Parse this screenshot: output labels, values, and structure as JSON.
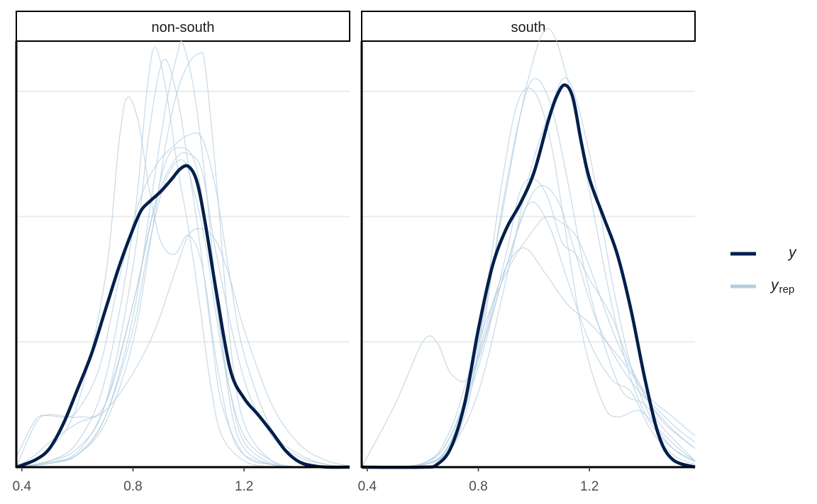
{
  "chart_data": {
    "type": "line",
    "subtype": "ppc-density-overlay-faceted",
    "facets": [
      "non-south",
      "south"
    ],
    "xlim": [
      0.38,
      1.58
    ],
    "ylim": [
      0,
      3.4
    ],
    "x_ticks": [
      0.4,
      0.8,
      1.2
    ],
    "x_tick_labels": [
      "0.4",
      "0.8",
      "1.2"
    ],
    "y_gridlines": [
      1.0,
      2.0,
      3.0
    ],
    "legend": {
      "placement": "right",
      "entries": [
        {
          "key": "y",
          "label": "y",
          "subscript": "",
          "color": "#011f4b"
        },
        {
          "key": "yrep",
          "label": "y",
          "subscript": "rep",
          "color": "#b3cde0"
        }
      ]
    },
    "colors": {
      "y": "#011f4b",
      "yrep": "#b3cde0",
      "grid": "#ebebeb"
    },
    "panels": [
      {
        "facet": "non-south",
        "y_x": [
          0.38,
          0.45,
          0.5,
          0.55,
          0.6,
          0.65,
          0.7,
          0.75,
          0.8,
          0.83,
          0.86,
          0.9,
          0.94,
          0.97,
          1.0,
          1.03,
          1.06,
          1.1,
          1.15,
          1.2,
          1.25,
          1.3,
          1.35,
          1.4,
          1.45,
          1.5,
          1.58
        ],
        "y_y": [
          0.0,
          0.06,
          0.15,
          0.35,
          0.62,
          0.9,
          1.25,
          1.6,
          1.9,
          2.05,
          2.12,
          2.2,
          2.3,
          2.38,
          2.4,
          2.28,
          1.95,
          1.4,
          0.78,
          0.55,
          0.42,
          0.28,
          0.13,
          0.04,
          0.01,
          0.0,
          0.0
        ],
        "yrep": [
          {
            "x": [
              0.38,
              0.5,
              0.6,
              0.7,
              0.75,
              0.78,
              0.82,
              0.86,
              0.9,
              0.95,
              1.0,
              1.05,
              1.1,
              1.15,
              1.2,
              1.3,
              1.4,
              1.5,
              1.58
            ],
            "y": [
              0.0,
              0.15,
              0.5,
              1.5,
              2.6,
              2.95,
              2.75,
              2.2,
              1.8,
              1.7,
              1.85,
              1.6,
              0.85,
              0.3,
              0.1,
              0.02,
              0.0,
              0.0,
              0.0
            ]
          },
          {
            "x": [
              0.38,
              0.5,
              0.6,
              0.7,
              0.8,
              0.85,
              0.88,
              0.92,
              0.96,
              1.0,
              1.04,
              1.08,
              1.12,
              1.2,
              1.3,
              1.4,
              1.5,
              1.58
            ],
            "y": [
              0.0,
              0.05,
              0.2,
              0.7,
              1.9,
              3.0,
              3.35,
              3.0,
              2.4,
              1.9,
              1.3,
              0.65,
              0.25,
              0.05,
              0.0,
              0.0,
              0.0,
              0.0
            ]
          },
          {
            "x": [
              0.38,
              0.5,
              0.6,
              0.7,
              0.8,
              0.86,
              0.91,
              0.96,
              1.0,
              1.04,
              1.08,
              1.12,
              1.2,
              1.3,
              1.4,
              1.5,
              1.58
            ],
            "y": [
              0.0,
              0.05,
              0.15,
              0.5,
              1.6,
              2.7,
              3.25,
              2.95,
              2.4,
              1.8,
              1.1,
              0.5,
              0.1,
              0.02,
              0.0,
              0.0,
              0.0
            ]
          },
          {
            "x": [
              0.38,
              0.5,
              0.6,
              0.7,
              0.8,
              0.87,
              0.92,
              0.96,
              0.98,
              1.02,
              1.06,
              1.1,
              1.15,
              1.2,
              1.3,
              1.4,
              1.5,
              1.58
            ],
            "y": [
              0.0,
              0.03,
              0.1,
              0.4,
              1.2,
              2.2,
              2.9,
              3.3,
              3.38,
              3.0,
              2.3,
              1.4,
              0.5,
              0.15,
              0.02,
              0.0,
              0.0,
              0.0
            ]
          },
          {
            "x": [
              0.38,
              0.5,
              0.6,
              0.7,
              0.8,
              0.87,
              0.92,
              0.96,
              1.0,
              1.04,
              1.06,
              1.1,
              1.15,
              1.2,
              1.3,
              1.4,
              1.5,
              1.58
            ],
            "y": [
              0.0,
              0.03,
              0.1,
              0.35,
              1.0,
              1.9,
              2.6,
              3.0,
              3.22,
              3.3,
              3.2,
              2.3,
              1.0,
              0.35,
              0.05,
              0.0,
              0.0,
              0.0
            ]
          },
          {
            "x": [
              0.38,
              0.45,
              0.5,
              0.55,
              0.6,
              0.68,
              0.75,
              0.82,
              0.88,
              0.94,
              1.0,
              1.05,
              1.1,
              1.15,
              1.2,
              1.3,
              1.4,
              1.5,
              1.58
            ],
            "y": [
              0.08,
              0.38,
              0.41,
              0.4,
              0.45,
              0.8,
              1.5,
              2.1,
              2.4,
              2.55,
              2.65,
              2.62,
              2.2,
              1.5,
              0.9,
              0.3,
              0.1,
              0.02,
              0.0
            ]
          },
          {
            "x": [
              0.38,
              0.5,
              0.6,
              0.7,
              0.8,
              0.87,
              0.92,
              0.97,
              1.02,
              1.06,
              1.1,
              1.15,
              1.2,
              1.3,
              1.4,
              1.5,
              1.58
            ],
            "y": [
              0.0,
              0.04,
              0.12,
              0.5,
              1.3,
              2.0,
              2.45,
              2.55,
              2.45,
              2.0,
              1.3,
              0.6,
              0.2,
              0.03,
              0.0,
              0.0,
              0.0
            ]
          },
          {
            "x": [
              0.38,
              0.5,
              0.6,
              0.7,
              0.8,
              0.86,
              0.92,
              0.98,
              1.02,
              1.06,
              1.1,
              1.14,
              1.2,
              1.3,
              1.4,
              1.5,
              1.58
            ],
            "y": [
              0.0,
              0.03,
              0.1,
              0.4,
              1.1,
              1.8,
              2.3,
              2.45,
              2.2,
              1.8,
              1.2,
              0.7,
              0.25,
              0.05,
              0.0,
              0.0,
              0.0
            ]
          },
          {
            "x": [
              0.38,
              0.45,
              0.5,
              0.6,
              0.7,
              0.8,
              0.88,
              0.95,
              1.0,
              1.05,
              1.1,
              1.15,
              1.2,
              1.3,
              1.4,
              1.5,
              1.58
            ],
            "y": [
              0.0,
              0.1,
              0.2,
              0.35,
              0.45,
              0.75,
              1.1,
              1.55,
              1.85,
              1.9,
              1.8,
              1.5,
              1.1,
              0.5,
              0.18,
              0.05,
              0.01
            ]
          },
          {
            "x": [
              0.38,
              0.45,
              0.5,
              0.6,
              0.7,
              0.8,
              0.88,
              0.95,
              1.0,
              1.05,
              1.1,
              1.2,
              1.3,
              1.4,
              1.5,
              1.58
            ],
            "y": [
              0.0,
              0.35,
              0.42,
              0.4,
              0.5,
              1.3,
              2.1,
              2.45,
              2.5,
              2.35,
              1.7,
              0.7,
              0.25,
              0.08,
              0.02,
              0.0
            ]
          }
        ]
      },
      {
        "facet": "south",
        "y_x": [
          0.38,
          0.6,
          0.65,
          0.7,
          0.75,
          0.8,
          0.85,
          0.9,
          0.95,
          1.0,
          1.05,
          1.08,
          1.11,
          1.14,
          1.17,
          1.2,
          1.25,
          1.3,
          1.35,
          1.4,
          1.45,
          1.5,
          1.58
        ],
        "y_y": [
          0.0,
          0.0,
          0.02,
          0.15,
          0.5,
          1.1,
          1.6,
          1.9,
          2.1,
          2.35,
          2.75,
          2.95,
          3.05,
          2.95,
          2.6,
          2.3,
          2.0,
          1.7,
          1.25,
          0.7,
          0.25,
          0.06,
          0.0
        ],
        "yrep": [
          {
            "x": [
              0.38,
              0.5,
              0.6,
              0.65,
              0.7,
              0.76,
              0.82,
              0.9,
              0.98,
              1.05,
              1.12,
              1.2,
              1.28,
              1.35,
              1.42,
              1.5,
              1.58
            ],
            "y": [
              0.0,
              0.5,
              1.0,
              1.0,
              0.75,
              0.7,
              1.0,
              1.6,
              2.1,
              1.95,
              1.5,
              1.0,
              0.7,
              0.6,
              0.3,
              0.1,
              0.02
            ]
          },
          {
            "x": [
              0.38,
              0.6,
              0.7,
              0.8,
              0.88,
              0.94,
              1.0,
              1.06,
              1.12,
              1.18,
              1.25,
              1.3,
              1.38,
              1.45,
              1.52,
              1.58
            ],
            "y": [
              0.0,
              0.02,
              0.2,
              1.0,
              2.2,
              2.9,
              3.0,
              2.6,
              1.8,
              1.0,
              0.5,
              0.4,
              0.45,
              0.3,
              0.15,
              0.05
            ]
          },
          {
            "x": [
              0.38,
              0.6,
              0.7,
              0.8,
              0.88,
              0.95,
              1.0,
              1.06,
              1.12,
              1.18,
              1.25,
              1.32,
              1.4,
              1.47,
              1.58
            ],
            "y": [
              0.0,
              0.02,
              0.2,
              0.9,
              2.0,
              2.8,
              3.1,
              2.9,
              2.3,
              1.6,
              1.0,
              0.6,
              0.5,
              0.3,
              0.05
            ]
          },
          {
            "x": [
              0.38,
              0.65,
              0.75,
              0.82,
              0.9,
              0.98,
              1.05,
              1.12,
              1.2,
              1.28,
              1.35,
              1.42,
              1.5,
              1.58
            ],
            "y": [
              0.0,
              0.05,
              0.4,
              1.2,
              2.2,
              3.1,
              3.5,
              3.1,
              2.2,
              1.3,
              0.7,
              0.35,
              0.15,
              0.05
            ]
          },
          {
            "x": [
              0.38,
              0.6,
              0.7,
              0.8,
              0.9,
              0.95,
              1.0,
              1.05,
              1.1,
              1.15,
              1.2,
              1.28,
              1.35,
              1.45,
              1.55,
              1.58
            ],
            "y": [
              0.0,
              0.03,
              0.25,
              0.85,
              1.7,
              2.2,
              2.3,
              2.15,
              1.8,
              1.7,
              1.5,
              1.2,
              0.8,
              0.4,
              0.2,
              0.15
            ]
          },
          {
            "x": [
              0.38,
              0.6,
              0.7,
              0.8,
              0.9,
              1.0,
              1.05,
              1.1,
              1.15,
              1.2,
              1.3,
              1.4,
              1.5,
              1.58
            ],
            "y": [
              0.0,
              0.03,
              0.3,
              1.0,
              1.55,
              1.9,
              2.0,
              1.95,
              1.85,
              1.6,
              1.0,
              0.6,
              0.4,
              0.25
            ]
          },
          {
            "x": [
              0.38,
              0.6,
              0.7,
              0.8,
              0.9,
              0.98,
              1.05,
              1.12,
              1.2,
              1.28,
              1.35,
              1.42,
              1.5,
              1.58
            ],
            "y": [
              0.0,
              0.02,
              0.15,
              0.6,
              1.5,
              2.3,
              2.8,
              3.1,
              2.5,
              1.5,
              0.8,
              0.4,
              0.15,
              0.04
            ]
          },
          {
            "x": [
              0.38,
              0.6,
              0.7,
              0.8,
              0.9,
              1.0,
              1.08,
              1.15,
              1.22,
              1.3,
              1.38,
              1.45,
              1.52,
              1.58
            ],
            "y": [
              0.0,
              0.02,
              0.2,
              0.8,
              1.6,
              2.2,
              2.15,
              1.7,
              1.2,
              0.85,
              0.6,
              0.45,
              0.3,
              0.2
            ]
          },
          {
            "x": [
              0.38,
              0.6,
              0.7,
              0.8,
              0.88,
              0.96,
              1.04,
              1.12,
              1.2,
              1.28,
              1.35,
              1.42,
              1.5,
              1.58
            ],
            "y": [
              0.0,
              0.03,
              0.25,
              0.9,
              1.5,
              1.75,
              1.55,
              1.3,
              1.15,
              0.95,
              0.75,
              0.5,
              0.3,
              0.15
            ]
          }
        ]
      }
    ]
  }
}
